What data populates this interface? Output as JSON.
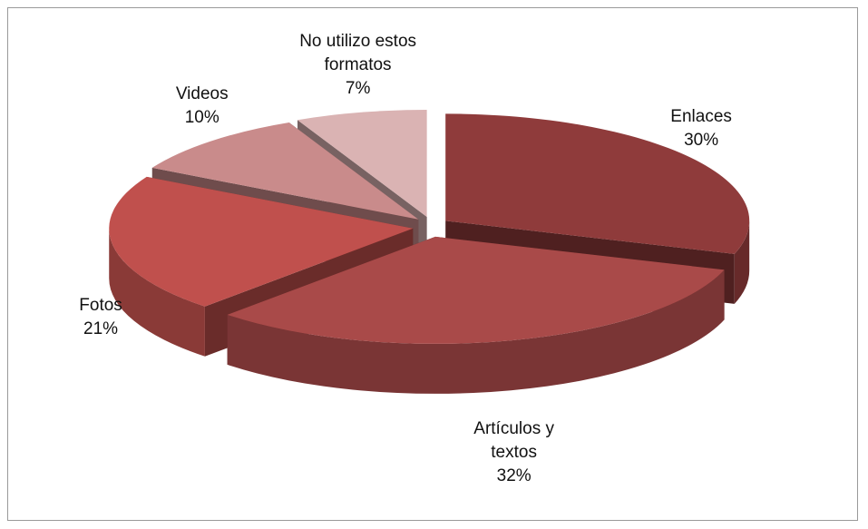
{
  "chart_data": {
    "type": "pie3d",
    "categories": [
      "Enlaces",
      "Artículos y textos",
      "Fotos",
      "Videos",
      "No utilizo estos formatos"
    ],
    "values": [
      30,
      32,
      21,
      10,
      7
    ],
    "value_labels": [
      "30%",
      "32%",
      "21%",
      "10%",
      "7%"
    ],
    "colors": [
      "#8f3b3b",
      "#a94a49",
      "#c0504d",
      "#c98b8b",
      "#dab3b3"
    ]
  }
}
